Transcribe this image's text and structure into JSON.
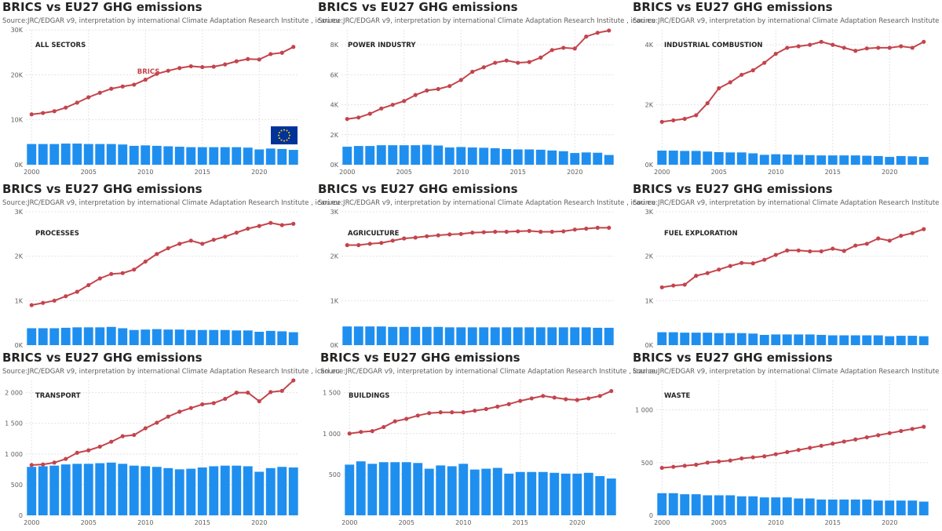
{
  "common": {
    "title": "BRICS vs EU27 GHG emissions",
    "source": "Source:JRC/EDGAR v9, interpretation by international Climate Adaptation Research Institute , icari.eu",
    "colors": {
      "brics": "#c4444c",
      "eu": "#1f8fef",
      "grid": "#e4e4e4",
      "text": "#605e5c",
      "sector": "#252423"
    },
    "annotation_label": "BRICS",
    "flag_icon": "eu-flag-icon"
  },
  "chart_data": [
    {
      "type": "bar+line",
      "sector": "ALL SECTORS",
      "x": [
        2000,
        2001,
        2002,
        2003,
        2004,
        2005,
        2006,
        2007,
        2008,
        2009,
        2010,
        2011,
        2012,
        2013,
        2014,
        2015,
        2016,
        2017,
        2018,
        2019,
        2020,
        2021,
        2022,
        2023
      ],
      "xticks": [
        2000,
        2005,
        2010,
        2015,
        2020
      ],
      "yticks": [
        0,
        10000,
        20000,
        30000
      ],
      "ytick_labels": [
        "0K",
        "10K",
        "20K",
        "30K"
      ],
      "ylim": [
        0,
        30000
      ],
      "series": [
        {
          "values": [
            11200,
            11500,
            11900,
            12700,
            13800,
            15000,
            16000,
            16900,
            17400,
            17800,
            18900,
            20200,
            20900,
            21500,
            21900,
            21700,
            21800,
            22300,
            23000,
            23500,
            23400,
            24600,
            24900,
            26200
          ]
        },
        {
          "values": [
            4600,
            4600,
            4600,
            4700,
            4700,
            4600,
            4600,
            4600,
            4500,
            4200,
            4300,
            4200,
            4100,
            4000,
            3900,
            3900,
            3900,
            3900,
            3900,
            3800,
            3400,
            3600,
            3500,
            3300
          ]
        }
      ]
    },
    {
      "type": "bar+line",
      "sector": "POWER INDUSTRY",
      "x": [
        2000,
        2001,
        2002,
        2003,
        2004,
        2005,
        2006,
        2007,
        2008,
        2009,
        2010,
        2011,
        2012,
        2013,
        2014,
        2015,
        2016,
        2017,
        2018,
        2019,
        2020,
        2021,
        2022,
        2023
      ],
      "xticks": [
        2000,
        2005,
        2010,
        2015,
        2020
      ],
      "yticks": [
        0,
        2000,
        4000,
        6000,
        8000
      ],
      "ytick_labels": [
        "0K",
        "2K",
        "4K",
        "6K",
        "8K"
      ],
      "ylim": [
        0,
        9000
      ],
      "series": [
        {
          "values": [
            3050,
            3150,
            3400,
            3750,
            4000,
            4250,
            4650,
            4950,
            5050,
            5250,
            5650,
            6200,
            6500,
            6800,
            6950,
            6800,
            6850,
            7150,
            7650,
            7800,
            7750,
            8550,
            8800,
            8950
          ]
        },
        {
          "values": [
            1200,
            1250,
            1250,
            1300,
            1300,
            1300,
            1300,
            1330,
            1280,
            1150,
            1180,
            1150,
            1130,
            1100,
            1050,
            1020,
            1020,
            1000,
            950,
            900,
            780,
            820,
            800,
            650
          ]
        }
      ]
    },
    {
      "type": "bar+line",
      "sector": "INDUSTRIAL COMBUSTION",
      "x": [
        2000,
        2001,
        2002,
        2003,
        2004,
        2005,
        2006,
        2007,
        2008,
        2009,
        2010,
        2011,
        2012,
        2013,
        2014,
        2015,
        2016,
        2017,
        2018,
        2019,
        2020,
        2021,
        2022,
        2023
      ],
      "xticks": [
        2000,
        2005,
        2010,
        2015,
        2020
      ],
      "yticks": [
        0,
        2000,
        4000
      ],
      "ytick_labels": [
        "0K",
        "2K",
        "4K"
      ],
      "ylim": [
        0,
        4500
      ],
      "series": [
        {
          "values": [
            1430,
            1480,
            1530,
            1650,
            2050,
            2550,
            2750,
            3000,
            3150,
            3400,
            3700,
            3900,
            3950,
            4000,
            4100,
            4000,
            3900,
            3800,
            3880,
            3900,
            3900,
            3950,
            3900,
            4100
          ]
        },
        {
          "values": [
            470,
            470,
            460,
            460,
            440,
            420,
            410,
            410,
            380,
            330,
            350,
            340,
            330,
            320,
            310,
            310,
            310,
            310,
            300,
            290,
            260,
            290,
            280,
            260
          ]
        }
      ]
    },
    {
      "type": "bar+line",
      "sector": "PROCESSES",
      "x": [
        2000,
        2001,
        2002,
        2003,
        2004,
        2005,
        2006,
        2007,
        2008,
        2009,
        2010,
        2011,
        2012,
        2013,
        2014,
        2015,
        2016,
        2017,
        2018,
        2019,
        2020,
        2021,
        2022,
        2023
      ],
      "xticks": [],
      "yticks": [
        0,
        1000,
        2000,
        3000
      ],
      "ytick_labels": [
        "0K",
        "1K",
        "2K",
        "3K"
      ],
      "ylim": [
        0,
        3000
      ],
      "series": [
        {
          "values": [
            900,
            950,
            1000,
            1100,
            1200,
            1350,
            1500,
            1600,
            1620,
            1700,
            1880,
            2050,
            2180,
            2280,
            2350,
            2280,
            2370,
            2440,
            2530,
            2620,
            2680,
            2750,
            2700,
            2730
          ]
        },
        {
          "values": [
            380,
            380,
            380,
            390,
            400,
            400,
            400,
            410,
            380,
            340,
            350,
            360,
            350,
            350,
            340,
            340,
            340,
            340,
            330,
            330,
            300,
            320,
            310,
            290
          ]
        }
      ]
    },
    {
      "type": "bar+line",
      "sector": "AGRICULTURE",
      "x": [
        2000,
        2001,
        2002,
        2003,
        2004,
        2005,
        2006,
        2007,
        2008,
        2009,
        2010,
        2011,
        2012,
        2013,
        2014,
        2015,
        2016,
        2017,
        2018,
        2019,
        2020,
        2021,
        2022,
        2023
      ],
      "xticks": [],
      "yticks": [
        0,
        1000,
        2000,
        3000
      ],
      "ytick_labels": [
        "0K",
        "1K",
        "2K",
        "3K"
      ],
      "ylim": [
        0,
        3000
      ],
      "series": [
        {
          "values": [
            2250,
            2250,
            2280,
            2300,
            2350,
            2400,
            2420,
            2450,
            2470,
            2490,
            2500,
            2530,
            2540,
            2550,
            2550,
            2560,
            2570,
            2550,
            2550,
            2560,
            2600,
            2620,
            2640,
            2640
          ]
        },
        {
          "values": [
            420,
            420,
            420,
            420,
            410,
            410,
            410,
            410,
            410,
            400,
            400,
            400,
            400,
            400,
            400,
            400,
            400,
            400,
            400,
            400,
            400,
            400,
            390,
            390
          ]
        }
      ]
    },
    {
      "type": "bar+line",
      "sector": "FUEL EXPLORATION",
      "x": [
        2000,
        2001,
        2002,
        2003,
        2004,
        2005,
        2006,
        2007,
        2008,
        2009,
        2010,
        2011,
        2012,
        2013,
        2014,
        2015,
        2016,
        2017,
        2018,
        2019,
        2020,
        2021,
        2022,
        2023
      ],
      "xticks": [],
      "yticks": [
        0,
        1000,
        2000,
        3000
      ],
      "ytick_labels": [
        "0K",
        "1K",
        "2K",
        "3K"
      ],
      "ylim": [
        0,
        3000
      ],
      "series": [
        {
          "values": [
            1300,
            1340,
            1360,
            1560,
            1620,
            1700,
            1780,
            1850,
            1840,
            1920,
            2030,
            2130,
            2130,
            2110,
            2110,
            2170,
            2120,
            2240,
            2280,
            2400,
            2350,
            2460,
            2520,
            2610
          ]
        },
        {
          "values": [
            290,
            290,
            280,
            280,
            280,
            270,
            270,
            270,
            260,
            230,
            240,
            240,
            240,
            240,
            230,
            220,
            220,
            220,
            220,
            220,
            200,
            210,
            210,
            200
          ]
        }
      ]
    },
    {
      "type": "bar+line",
      "sector": "TRANSPORT",
      "x": [
        2000,
        2001,
        2002,
        2003,
        2004,
        2005,
        2006,
        2007,
        2008,
        2009,
        2010,
        2011,
        2012,
        2013,
        2014,
        2015,
        2016,
        2017,
        2018,
        2019,
        2020,
        2021,
        2022,
        2023
      ],
      "xticks": [
        2000,
        2005,
        2010,
        2015,
        2020
      ],
      "yticks": [
        0,
        500,
        1000,
        1500,
        2000
      ],
      "ytick_labels": [
        "0",
        "500",
        "1 000",
        "1 500",
        "2 000"
      ],
      "ylim": [
        0,
        2200
      ],
      "series": [
        {
          "values": [
            820,
            830,
            860,
            920,
            1020,
            1060,
            1120,
            1200,
            1290,
            1310,
            1420,
            1510,
            1610,
            1690,
            1750,
            1810,
            1830,
            1900,
            2000,
            2000,
            1860,
            2010,
            2030,
            2200
          ]
        },
        {
          "values": [
            790,
            800,
            810,
            830,
            840,
            840,
            850,
            860,
            840,
            810,
            800,
            790,
            770,
            750,
            760,
            780,
            800,
            810,
            810,
            800,
            710,
            770,
            790,
            780
          ]
        }
      ]
    },
    {
      "type": "bar+line",
      "sector": "BUILDINGS",
      "x": [
        2000,
        2001,
        2002,
        2003,
        2004,
        2005,
        2006,
        2007,
        2008,
        2009,
        2010,
        2011,
        2012,
        2013,
        2014,
        2015,
        2016,
        2017,
        2018,
        2019,
        2020,
        2021,
        2022,
        2023
      ],
      "xticks": [
        2000,
        2005,
        2010,
        2015,
        2020
      ],
      "yticks": [
        500,
        1000,
        1500
      ],
      "ytick_labels": [
        "500",
        "1 000",
        "1 500"
      ],
      "ylim": [
        0,
        1650
      ],
      "series": [
        {
          "values": [
            1000,
            1020,
            1030,
            1080,
            1150,
            1180,
            1220,
            1250,
            1260,
            1260,
            1260,
            1280,
            1300,
            1330,
            1360,
            1400,
            1430,
            1460,
            1440,
            1420,
            1410,
            1430,
            1460,
            1520
          ]
        },
        {
          "values": [
            620,
            660,
            630,
            650,
            650,
            650,
            640,
            570,
            610,
            600,
            630,
            560,
            570,
            580,
            510,
            530,
            530,
            530,
            520,
            510,
            510,
            520,
            480,
            450
          ]
        }
      ]
    },
    {
      "type": "bar+line",
      "sector": "WASTE",
      "x": [
        2000,
        2001,
        2002,
        2003,
        2004,
        2005,
        2006,
        2007,
        2008,
        2009,
        2010,
        2011,
        2012,
        2013,
        2014,
        2015,
        2016,
        2017,
        2018,
        2019,
        2020,
        2021,
        2022,
        2023
      ],
      "xticks": [
        2000,
        2005,
        2010,
        2015,
        2020
      ],
      "yticks": [
        0,
        500,
        1000
      ],
      "ytick_labels": [
        "0",
        "500",
        "1 000"
      ],
      "ylim": [
        0,
        1280
      ],
      "series": [
        {
          "values": [
            450,
            460,
            470,
            480,
            500,
            510,
            520,
            540,
            550,
            560,
            580,
            600,
            620,
            640,
            660,
            680,
            700,
            720,
            740,
            760,
            780,
            800,
            820,
            840
          ]
        },
        {
          "values": [
            210,
            210,
            200,
            200,
            190,
            190,
            190,
            180,
            180,
            170,
            170,
            170,
            160,
            160,
            150,
            150,
            150,
            150,
            150,
            140,
            140,
            140,
            140,
            130
          ]
        }
      ]
    }
  ]
}
